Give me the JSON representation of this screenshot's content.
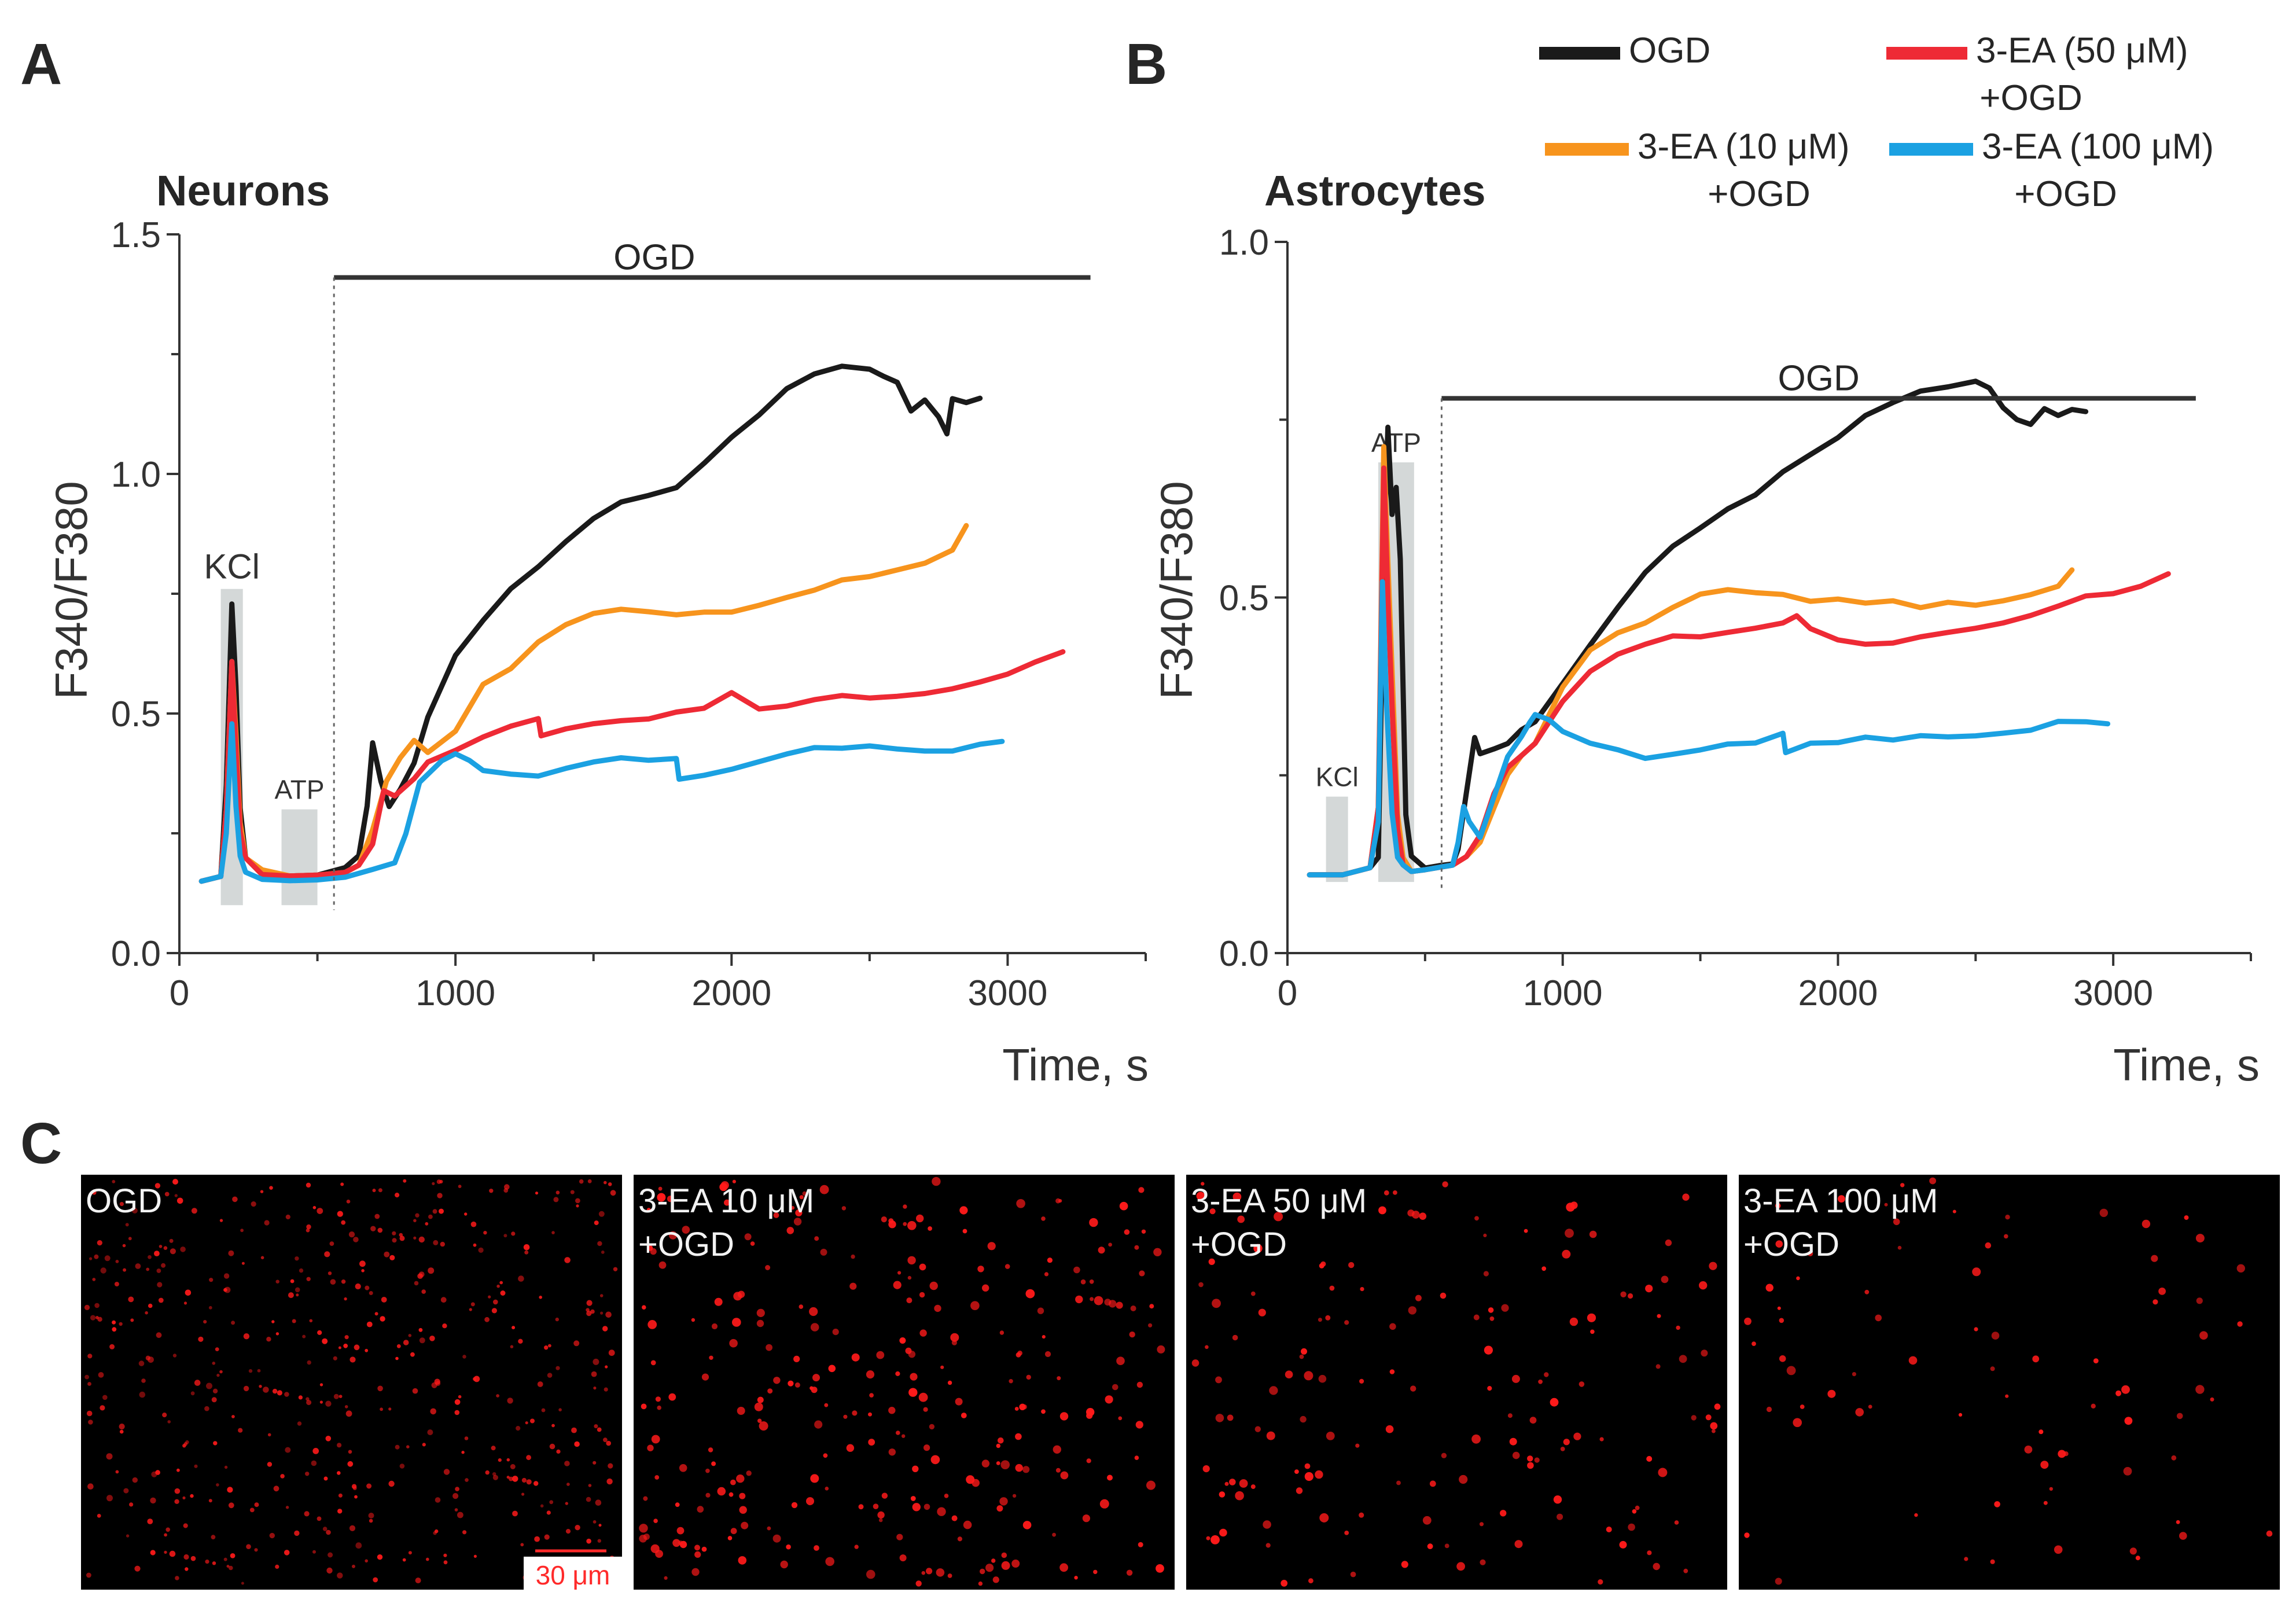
{
  "panels": {
    "a_letter": "A",
    "b_letter": "B",
    "c_letter": "C"
  },
  "legend": {
    "items": [
      {
        "line1": "OGD",
        "line2": "",
        "color": "#1a1a1a"
      },
      {
        "line1": "3-EA (50 μM)",
        "line2": "+OGD",
        "color": "#ee2a35"
      },
      {
        "line1": "3-EA (10 μM)",
        "line2": "+OGD",
        "color": "#f7941d"
      },
      {
        "line1": "3-EA (100 μM)",
        "line2": "+OGD",
        "color": "#1ba1e2"
      }
    ]
  },
  "chart_data": [
    {
      "type": "line",
      "title": "Neurons",
      "xlabel": "Time, s",
      "ylabel": "F340/F380",
      "xlim": [
        0,
        3500
      ],
      "ylim": [
        0,
        1.5
      ],
      "xticks": [
        0,
        1000,
        2000,
        3000
      ],
      "xtick_labels": [
        "0",
        "1000",
        "2000",
        "3000"
      ],
      "yticks": [
        0,
        0.5,
        1.0,
        1.5
      ],
      "ytick_labels": [
        "0.0",
        "0.5",
        "1.0",
        "1.5"
      ],
      "grid": false,
      "stimuli": [
        {
          "label": "KCl",
          "x_start": 150,
          "x_end": 230,
          "y_top": 0.76
        },
        {
          "label": "ATP",
          "x_start": 370,
          "x_end": 500,
          "y_top": 0.3
        }
      ],
      "ogd_bar": {
        "label": "OGD",
        "x_start": 560,
        "x_end": 3300,
        "y": 1.41
      },
      "series": [
        {
          "name": "OGD",
          "color": "#1a1a1a",
          "x": [
            80,
            150,
            170,
            190,
            205,
            220,
            240,
            300,
            400,
            500,
            600,
            650,
            680,
            700,
            730,
            760,
            800,
            850,
            900,
            1000,
            1100,
            1200,
            1300,
            1400,
            1500,
            1600,
            1700,
            1800,
            1900,
            2000,
            2100,
            2200,
            2300,
            2400,
            2500,
            2550,
            2600,
            2650,
            2700,
            2750,
            2780,
            2800,
            2850,
            2900
          ],
          "y": [
            0.15,
            0.16,
            0.35,
            0.72,
            0.55,
            0.3,
            0.2,
            0.17,
            0.17,
            0.17,
            0.18,
            0.2,
            0.3,
            0.43,
            0.35,
            0.3,
            0.34,
            0.4,
            0.5,
            0.63,
            0.7,
            0.76,
            0.8,
            0.85,
            0.9,
            0.94,
            0.96,
            0.98,
            1.03,
            1.08,
            1.12,
            1.17,
            1.2,
            1.22,
            1.22,
            1.21,
            1.2,
            1.14,
            1.16,
            1.12,
            1.08,
            1.15,
            1.14,
            1.15
          ]
        },
        {
          "name": "3-EA (10 μM)+OGD",
          "color": "#f7941d",
          "x": [
            80,
            150,
            170,
            190,
            205,
            220,
            240,
            300,
            400,
            500,
            600,
            650,
            700,
            750,
            800,
            850,
            900,
            1000,
            1100,
            1200,
            1300,
            1400,
            1500,
            1600,
            1700,
            1800,
            1900,
            2000,
            2100,
            2200,
            2300,
            2400,
            2500,
            2600,
            2700,
            2800,
            2850
          ],
          "y": [
            0.15,
            0.16,
            0.3,
            0.6,
            0.45,
            0.27,
            0.2,
            0.18,
            0.17,
            0.17,
            0.17,
            0.18,
            0.25,
            0.35,
            0.4,
            0.44,
            0.42,
            0.47,
            0.57,
            0.6,
            0.65,
            0.68,
            0.7,
            0.71,
            0.71,
            0.71,
            0.72,
            0.72,
            0.73,
            0.74,
            0.75,
            0.77,
            0.78,
            0.8,
            0.82,
            0.85,
            0.9
          ]
        },
        {
          "name": "3-EA (50 μM)+OGD",
          "color": "#ee2a35",
          "x": [
            80,
            150,
            170,
            190,
            205,
            220,
            240,
            300,
            400,
            500,
            600,
            650,
            700,
            740,
            780,
            850,
            900,
            1000,
            1100,
            1200,
            1300,
            1310,
            1400,
            1500,
            1600,
            1700,
            1800,
            1900,
            2000,
            2100,
            2200,
            2300,
            2400,
            2500,
            2600,
            2700,
            2800,
            2900,
            3000,
            3100,
            3200
          ],
          "y": [
            0.15,
            0.16,
            0.3,
            0.6,
            0.42,
            0.25,
            0.2,
            0.17,
            0.17,
            0.17,
            0.17,
            0.18,
            0.22,
            0.33,
            0.32,
            0.36,
            0.4,
            0.43,
            0.46,
            0.48,
            0.49,
            0.45,
            0.46,
            0.47,
            0.48,
            0.49,
            0.51,
            0.52,
            0.55,
            0.51,
            0.51,
            0.52,
            0.53,
            0.53,
            0.54,
            0.55,
            0.56,
            0.57,
            0.58,
            0.6,
            0.62
          ]
        },
        {
          "name": "3-EA (100 μM)+OGD",
          "color": "#1ba1e2",
          "x": [
            80,
            150,
            170,
            190,
            205,
            220,
            240,
            300,
            400,
            500,
            600,
            700,
            780,
            820,
            870,
            950,
            1000,
            1050,
            1100,
            1200,
            1300,
            1400,
            1500,
            1600,
            1700,
            1800,
            1810,
            1900,
            2000,
            2100,
            2200,
            2300,
            2400,
            2500,
            2600,
            2700,
            2800,
            2900,
            2980
          ],
          "y": [
            0.15,
            0.16,
            0.25,
            0.47,
            0.3,
            0.2,
            0.17,
            0.16,
            0.16,
            0.16,
            0.16,
            0.17,
            0.18,
            0.24,
            0.35,
            0.4,
            0.42,
            0.41,
            0.39,
            0.38,
            0.37,
            0.38,
            0.39,
            0.4,
            0.4,
            0.41,
            0.37,
            0.38,
            0.39,
            0.4,
            0.41,
            0.42,
            0.42,
            0.43,
            0.43,
            0.43,
            0.43,
            0.44,
            0.44
          ]
        }
      ]
    },
    {
      "type": "line",
      "title": "Astrocytes",
      "xlabel": "Time, s",
      "ylabel": "F340/F380",
      "xlim": [
        0,
        3500
      ],
      "ylim": [
        0,
        1.0
      ],
      "xticks": [
        0,
        1000,
        2000,
        3000
      ],
      "xtick_labels": [
        "0",
        "1000",
        "2000",
        "3000"
      ],
      "yticks": [
        0,
        0.5,
        1.0
      ],
      "ytick_labels": [
        "0.0",
        "0.5",
        "1.0"
      ],
      "grid": false,
      "stimuli": [
        {
          "label": "KCl",
          "x_start": 140,
          "x_end": 220,
          "y_top": 0.22
        },
        {
          "label": "ATP",
          "x_start": 330,
          "x_end": 460,
          "y_top": 0.69
        }
      ],
      "ogd_bar": {
        "label": "OGD",
        "x_start": 560,
        "x_end": 3300,
        "y": 0.78
      },
      "series": [
        {
          "name": "OGD",
          "color": "#1a1a1a",
          "x": [
            80,
            200,
            300,
            330,
            350,
            365,
            380,
            395,
            410,
            430,
            450,
            500,
            550,
            600,
            620,
            650,
            680,
            700,
            750,
            800,
            850,
            900,
            1000,
            1100,
            1200,
            1300,
            1400,
            1500,
            1600,
            1700,
            1800,
            1900,
            2000,
            2100,
            2200,
            2300,
            2400,
            2500,
            2550,
            2600,
            2650,
            2700,
            2750,
            2800,
            2850,
            2900
          ],
          "y": [
            0.11,
            0.11,
            0.12,
            0.13,
            0.55,
            0.74,
            0.62,
            0.66,
            0.56,
            0.2,
            0.14,
            0.12,
            0.12,
            0.12,
            0.14,
            0.22,
            0.3,
            0.28,
            0.29,
            0.3,
            0.32,
            0.33,
            0.38,
            0.43,
            0.48,
            0.53,
            0.57,
            0.6,
            0.63,
            0.65,
            0.68,
            0.7,
            0.72,
            0.75,
            0.77,
            0.79,
            0.8,
            0.81,
            0.8,
            0.77,
            0.75,
            0.74,
            0.76,
            0.75,
            0.76,
            0.76
          ]
        },
        {
          "name": "3-EA (10 μM)+OGD",
          "color": "#f7941d",
          "x": [
            80,
            200,
            300,
            330,
            350,
            365,
            380,
            400,
            420,
            450,
            500,
            550,
            600,
            650,
            700,
            750,
            800,
            850,
            900,
            1000,
            1100,
            1200,
            1300,
            1400,
            1500,
            1600,
            1700,
            1800,
            1900,
            2000,
            2100,
            2200,
            2300,
            2400,
            2500,
            2600,
            2700,
            2800,
            2850
          ],
          "y": [
            0.11,
            0.11,
            0.12,
            0.2,
            0.71,
            0.55,
            0.4,
            0.2,
            0.14,
            0.12,
            0.12,
            0.12,
            0.12,
            0.13,
            0.15,
            0.2,
            0.25,
            0.28,
            0.3,
            0.38,
            0.43,
            0.45,
            0.46,
            0.48,
            0.5,
            0.51,
            0.51,
            0.51,
            0.5,
            0.5,
            0.49,
            0.49,
            0.48,
            0.49,
            0.49,
            0.5,
            0.51,
            0.52,
            0.54
          ]
        },
        {
          "name": "3-EA (50 μM)+OGD",
          "color": "#ee2a35",
          "x": [
            80,
            200,
            300,
            330,
            350,
            365,
            380,
            400,
            420,
            450,
            500,
            550,
            600,
            650,
            700,
            750,
            800,
            850,
            900,
            1000,
            1100,
            1200,
            1300,
            1400,
            1500,
            1600,
            1700,
            1800,
            1850,
            1900,
            2000,
            2100,
            2200,
            2300,
            2400,
            2500,
            2600,
            2700,
            2800,
            2900,
            3000,
            3100,
            3200
          ],
          "y": [
            0.11,
            0.11,
            0.12,
            0.2,
            0.68,
            0.5,
            0.35,
            0.18,
            0.13,
            0.12,
            0.12,
            0.12,
            0.12,
            0.13,
            0.16,
            0.22,
            0.26,
            0.28,
            0.3,
            0.36,
            0.4,
            0.42,
            0.43,
            0.44,
            0.44,
            0.45,
            0.46,
            0.47,
            0.48,
            0.46,
            0.44,
            0.43,
            0.43,
            0.44,
            0.45,
            0.46,
            0.47,
            0.48,
            0.49,
            0.5,
            0.5,
            0.51,
            0.53
          ]
        },
        {
          "name": "3-EA (100 μM)+OGD",
          "color": "#1ba1e2",
          "x": [
            80,
            200,
            300,
            330,
            345,
            360,
            380,
            400,
            420,
            450,
            500,
            550,
            600,
            620,
            640,
            660,
            700,
            750,
            800,
            850,
            880,
            900,
            950,
            1000,
            1100,
            1200,
            1300,
            1400,
            1500,
            1600,
            1700,
            1800,
            1810,
            1900,
            2000,
            2100,
            2200,
            2300,
            2400,
            2500,
            2600,
            2700,
            2800,
            2900,
            2980
          ],
          "y": [
            0.11,
            0.11,
            0.12,
            0.18,
            0.52,
            0.35,
            0.2,
            0.14,
            0.13,
            0.12,
            0.12,
            0.12,
            0.12,
            0.15,
            0.2,
            0.18,
            0.16,
            0.22,
            0.28,
            0.31,
            0.33,
            0.34,
            0.33,
            0.31,
            0.29,
            0.28,
            0.27,
            0.28,
            0.29,
            0.3,
            0.3,
            0.31,
            0.28,
            0.29,
            0.29,
            0.3,
            0.3,
            0.31,
            0.31,
            0.31,
            0.31,
            0.31,
            0.32,
            0.32,
            0.32
          ]
        }
      ]
    }
  ],
  "images": [
    {
      "line1": "OGD",
      "line2": "",
      "cell_density": 0.9
    },
    {
      "line1": "3-EA 10 μM",
      "line2": "+OGD",
      "cell_density": 0.55
    },
    {
      "line1": "3-EA 50 μM",
      "line2": "+OGD",
      "cell_density": 0.3
    },
    {
      "line1": "3-EA 100 μM",
      "line2": "+OGD",
      "cell_density": 0.15
    }
  ],
  "scale_bar": {
    "label": "30 μm"
  }
}
